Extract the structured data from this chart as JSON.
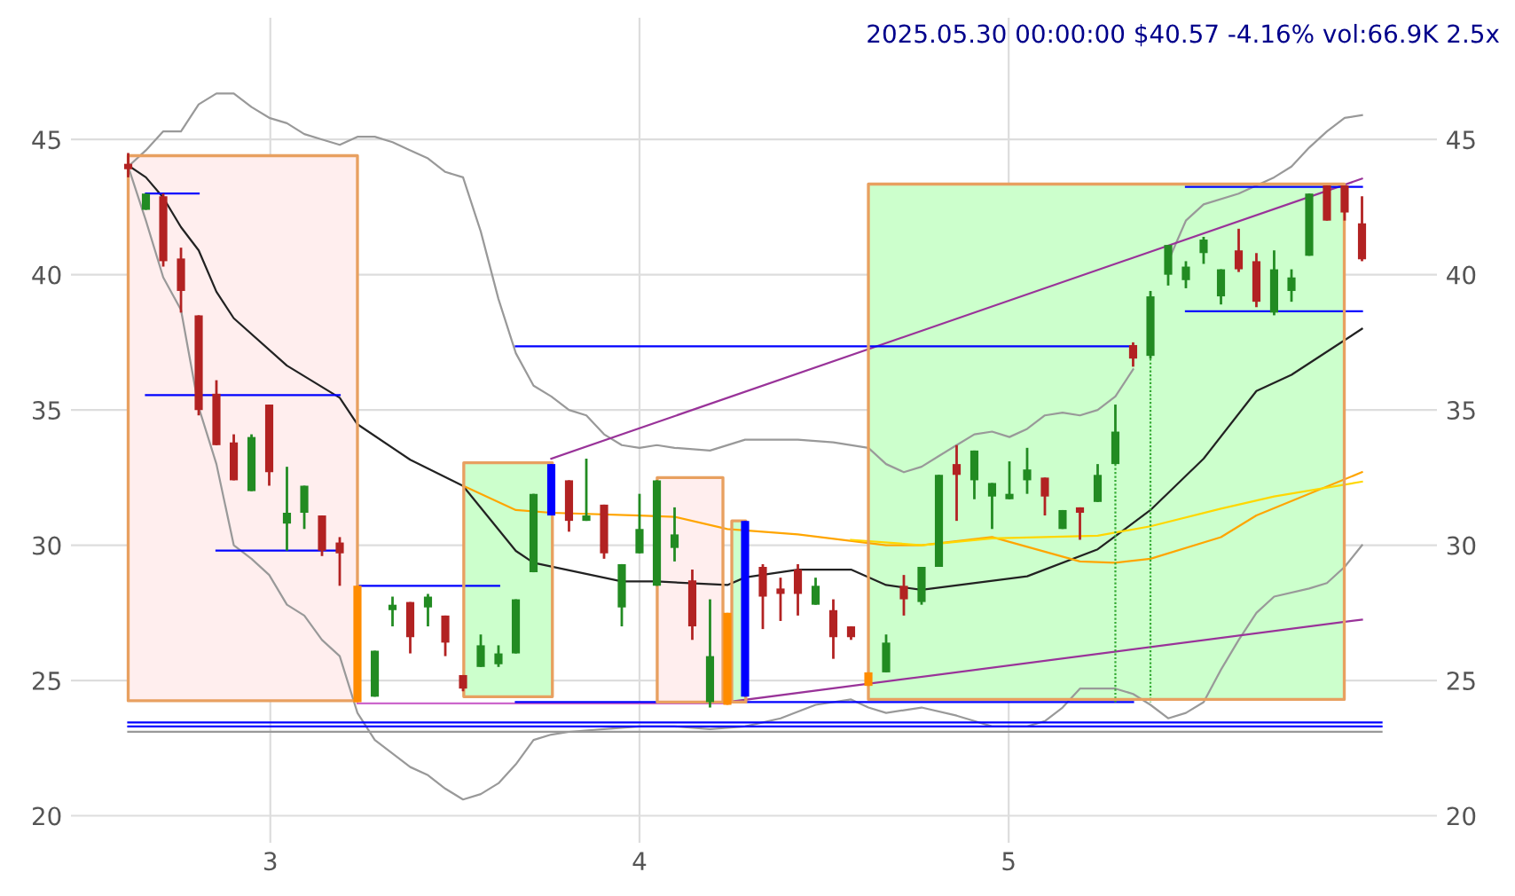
{
  "chart_data": {
    "type": "candlestick",
    "title": "2025.05.30 00:00:00 $40.57 -4.16% vol:66.9K 2.5x",
    "x": [
      2.615,
      2.663,
      2.71,
      2.758,
      2.806,
      2.854,
      2.901,
      2.949,
      2.997,
      3.045,
      3.092,
      3.14,
      3.188,
      3.236,
      3.283,
      3.331,
      3.379,
      3.427,
      3.474,
      3.522,
      3.57,
      3.618,
      3.665,
      3.713,
      3.761,
      3.809,
      3.856,
      3.904,
      3.952,
      4.0,
      4.047,
      4.095,
      4.143,
      4.191,
      4.238,
      4.286,
      4.334,
      4.382,
      4.429,
      4.477,
      4.525,
      4.573,
      4.62,
      4.668,
      4.716,
      4.764,
      4.811,
      4.859,
      4.907,
      4.955,
      5.002,
      5.05,
      5.098,
      5.146,
      5.193,
      5.241,
      5.289,
      5.337,
      5.384,
      5.432,
      5.48,
      5.528,
      5.575,
      5.623,
      5.671,
      5.719,
      5.766,
      5.814,
      5.862,
      5.91,
      5.957
    ],
    "ohlc": [
      [
        44.1,
        44.5,
        43.6,
        43.9
      ],
      [
        42.4,
        43.0,
        42.4,
        43.0
      ],
      [
        42.9,
        43.0,
        40.3,
        40.5
      ],
      [
        40.6,
        41.0,
        38.6,
        39.4
      ],
      [
        38.5,
        38.5,
        34.8,
        35.0
      ],
      [
        35.6,
        36.1,
        33.7,
        33.7
      ],
      [
        33.8,
        34.1,
        32.4,
        32.4
      ],
      [
        32.0,
        34.1,
        32.0,
        34.0
      ],
      [
        35.2,
        35.2,
        32.2,
        32.7
      ],
      [
        30.8,
        32.9,
        29.8,
        31.2
      ],
      [
        31.2,
        32.2,
        30.6,
        32.2
      ],
      [
        31.1,
        31.1,
        29.6,
        29.8
      ],
      [
        30.1,
        30.3,
        28.5,
        29.7
      ],
      [
        28.5,
        28.5,
        24.2,
        24.2
      ],
      [
        24.4,
        26.1,
        24.4,
        26.1
      ],
      [
        27.6,
        28.1,
        27.0,
        27.8
      ],
      [
        27.9,
        27.9,
        26.0,
        26.6
      ],
      [
        27.7,
        28.2,
        27.0,
        28.1
      ],
      [
        27.4,
        27.4,
        25.9,
        26.4
      ],
      [
        25.2,
        25.2,
        24.6,
        24.7
      ],
      [
        25.5,
        26.7,
        25.5,
        26.3
      ],
      [
        25.6,
        26.3,
        25.5,
        26.0
      ],
      [
        26.0,
        28.0,
        26.0,
        28.0
      ],
      [
        29.0,
        31.9,
        29.0,
        31.9
      ],
      [
        31.1,
        33.0,
        31.1,
        33.0
      ],
      [
        32.4,
        32.4,
        30.5,
        30.9
      ],
      [
        30.9,
        33.2,
        30.9,
        31.1
      ],
      [
        31.5,
        31.5,
        29.5,
        29.7
      ],
      [
        27.7,
        29.3,
        27.0,
        29.3
      ],
      [
        29.7,
        31.9,
        29.7,
        30.6
      ],
      [
        28.5,
        32.4,
        28.5,
        32.4
      ],
      [
        29.9,
        31.4,
        29.4,
        30.4
      ],
      [
        28.7,
        29.1,
        26.5,
        27.0
      ],
      [
        24.2,
        28.0,
        24.0,
        25.9
      ],
      [
        27.5,
        27.5,
        24.1,
        24.1
      ],
      [
        24.4,
        30.9,
        24.4,
        30.9
      ],
      [
        29.2,
        29.3,
        26.9,
        28.1
      ],
      [
        28.4,
        28.8,
        27.2,
        28.2
      ],
      [
        29.1,
        29.3,
        27.4,
        28.2
      ],
      [
        27.8,
        28.8,
        27.8,
        28.5
      ],
      [
        27.6,
        28.0,
        25.8,
        26.6
      ],
      [
        27.0,
        27.0,
        26.5,
        26.6
      ],
      [
        25.3,
        25.3,
        24.8,
        24.8
      ],
      [
        25.3,
        26.7,
        25.3,
        26.4
      ],
      [
        28.5,
        28.9,
        27.4,
        28.0
      ],
      [
        27.9,
        29.2,
        27.8,
        29.2
      ],
      [
        29.2,
        32.6,
        29.2,
        32.6
      ],
      [
        33.0,
        33.7,
        30.9,
        32.6
      ],
      [
        32.4,
        33.5,
        31.7,
        33.5
      ],
      [
        31.8,
        32.3,
        30.6,
        32.3
      ],
      [
        31.7,
        33.1,
        31.7,
        31.9
      ],
      [
        32.4,
        33.6,
        31.9,
        32.8
      ],
      [
        32.5,
        32.5,
        31.1,
        31.8
      ],
      [
        30.6,
        31.3,
        30.6,
        31.3
      ],
      [
        31.4,
        31.4,
        30.2,
        31.2
      ],
      [
        31.6,
        33.0,
        31.6,
        32.6
      ],
      [
        33.0,
        35.2,
        33.0,
        34.2
      ],
      [
        37.4,
        37.5,
        36.6,
        36.9
      ],
      [
        37.0,
        39.4,
        36.9,
        39.2
      ],
      [
        40.0,
        41.1,
        39.6,
        41.1
      ],
      [
        39.8,
        40.5,
        39.5,
        40.3
      ],
      [
        40.8,
        41.4,
        40.4,
        41.3
      ],
      [
        39.2,
        40.2,
        38.9,
        40.2
      ],
      [
        40.9,
        41.7,
        40.1,
        40.2
      ],
      [
        40.5,
        40.8,
        38.8,
        39.0
      ],
      [
        38.6,
        40.9,
        38.5,
        40.2
      ],
      [
        39.4,
        40.2,
        39.0,
        39.9
      ],
      [
        40.7,
        43.0,
        40.7,
        43.0
      ],
      [
        43.3,
        43.3,
        42.0,
        42.0
      ],
      [
        43.3,
        43.3,
        42.0,
        42.3
      ],
      [
        41.9,
        42.9,
        40.5,
        40.57
      ]
    ],
    "colors": [
      "#b22222",
      "#228b22",
      "#b22222",
      "#b22222",
      "#b22222",
      "#b22222",
      "#b22222",
      "#228b22",
      "#b22222",
      "#228b22",
      "#228b22",
      "#b22222",
      "#b22222",
      "#ff8c00",
      "#228b22",
      "#228b22",
      "#b22222",
      "#228b22",
      "#b22222",
      "#b22222",
      "#228b22",
      "#228b22",
      "#228b22",
      "#228b22",
      "#0000ff",
      "#b22222",
      "#228b22",
      "#b22222",
      "#228b22",
      "#228b22",
      "#228b22",
      "#228b22",
      "#b22222",
      "#228b22",
      "#ff8c00",
      "#0000ff",
      "#b22222",
      "#b22222",
      "#b22222",
      "#228b22",
      "#b22222",
      "#b22222",
      "#ff8c00",
      "#228b22",
      "#b22222",
      "#228b22",
      "#228b22",
      "#b22222",
      "#228b22",
      "#228b22",
      "#228b22",
      "#228b22",
      "#b22222",
      "#228b22",
      "#b22222",
      "#228b22",
      "#228b22",
      "#b22222",
      "#228b22",
      "#228b22",
      "#228b22",
      "#228b22",
      "#228b22",
      "#b22222",
      "#b22222",
      "#228b22",
      "#228b22",
      "#228b22",
      "#b22222",
      "#b22222",
      "#b22222"
    ],
    "series": [
      {
        "type": "area",
        "color": "#ffeeee",
        "x": [
          2.615,
          2.615,
          3.236,
          3.236,
          2.615
        ],
        "values": [
          24.25,
          44.4,
          44.4,
          24.25,
          24.25
        ]
      },
      {
        "type": "area",
        "color": "#ccffcc",
        "x": [
          3.524,
          3.524,
          3.764,
          3.764,
          3.524
        ],
        "values": [
          24.4,
          33.05,
          33.05,
          24.4,
          24.4
        ]
      },
      {
        "type": "area",
        "color": "#ffeeee",
        "x": [
          4.048,
          4.048,
          4.226,
          4.226,
          4.048
        ],
        "values": [
          24.2,
          32.5,
          32.5,
          24.2,
          24.2
        ]
      },
      {
        "type": "area",
        "color": "#ccffcc",
        "x": [
          4.25,
          4.25,
          4.288,
          4.288,
          4.25
        ],
        "values": [
          24.2,
          30.9,
          30.9,
          24.2,
          24.2
        ]
      },
      {
        "type": "area",
        "color": "#ccffcc",
        "x": [
          4.62,
          4.62,
          5.909,
          5.909,
          4.62
        ],
        "values": [
          24.3,
          43.35,
          43.35,
          24.3,
          24.3
        ]
      },
      {
        "type": "line",
        "color": "#999999",
        "x": [
          2.615,
          2.663,
          2.71,
          2.758,
          2.806,
          2.854,
          2.901,
          2.949,
          2.997,
          3.045,
          3.092,
          3.14,
          3.188,
          3.236,
          3.283,
          3.331,
          3.379,
          3.427,
          3.474,
          3.522,
          3.57,
          3.618,
          3.665,
          3.713,
          3.761,
          3.809,
          3.856,
          3.904,
          3.952,
          4.0,
          4.047,
          4.095,
          4.191,
          4.286,
          4.429,
          4.525,
          4.62,
          4.668,
          4.716,
          4.764,
          4.811,
          4.859,
          4.907,
          4.955,
          5.002,
          5.05,
          5.098,
          5.146,
          5.193,
          5.241,
          5.289,
          5.337,
          5.384,
          5.432,
          5.48,
          5.528,
          5.623,
          5.719,
          5.766,
          5.814,
          5.862,
          5.91,
          5.957
        ],
        "values": [
          44.0,
          44.6,
          45.3,
          45.3,
          46.3,
          46.7,
          46.7,
          46.2,
          45.8,
          45.6,
          45.2,
          45.0,
          44.8,
          45.1,
          45.1,
          44.9,
          44.6,
          44.3,
          43.8,
          43.6,
          41.6,
          39.1,
          37.1,
          35.9,
          35.5,
          35.0,
          34.8,
          34.1,
          33.7,
          33.6,
          33.7,
          33.6,
          33.5,
          33.9,
          33.9,
          33.8,
          33.6,
          33.0,
          32.7,
          32.9,
          33.3,
          33.7,
          34.1,
          34.2,
          34.0,
          34.3,
          34.8,
          34.9,
          34.8,
          35.0,
          35.5,
          36.5,
          null,
          40.5,
          42.0,
          42.6,
          43.0,
          43.6,
          44.0,
          44.7,
          45.3,
          45.8,
          45.9
        ]
      },
      {
        "type": "line",
        "color": "#999999",
        "x": [
          2.615,
          2.663,
          2.71,
          2.758,
          2.806,
          2.854,
          2.901,
          2.949,
          2.997,
          3.045,
          3.092,
          3.14,
          3.188,
          3.236,
          3.283,
          3.331,
          3.379,
          3.427,
          3.474,
          3.522,
          3.57,
          3.618,
          3.665,
          3.713,
          3.761,
          3.809,
          3.904,
          4.0,
          4.095,
          4.191,
          4.286,
          4.382,
          4.477,
          4.573,
          4.62,
          4.668,
          4.716,
          4.764,
          4.859,
          4.907,
          4.955,
          5.05,
          5.098,
          5.146,
          5.193,
          5.289,
          5.337,
          5.384,
          5.432,
          5.48,
          5.528,
          5.575,
          5.623,
          5.671,
          5.719,
          5.814,
          5.862,
          5.91,
          5.957
        ],
        "values": [
          44.0,
          42.0,
          39.9,
          38.7,
          35.1,
          33.0,
          30.0,
          29.5,
          28.9,
          27.8,
          27.4,
          26.5,
          25.9,
          23.8,
          22.8,
          22.3,
          21.8,
          21.5,
          21.0,
          20.6,
          20.8,
          21.2,
          21.9,
          22.8,
          23.0,
          23.1,
          23.2,
          23.3,
          23.3,
          23.2,
          23.3,
          23.6,
          24.1,
          24.3,
          24.0,
          23.8,
          23.9,
          24.0,
          23.7,
          23.5,
          23.3,
          23.3,
          23.5,
          24.0,
          24.7,
          24.7,
          24.5,
          24.1,
          23.6,
          23.8,
          24.2,
          25.4,
          26.5,
          27.5,
          28.1,
          28.4,
          28.6,
          29.2,
          30.0
        ]
      },
      {
        "type": "line",
        "color": "#222222",
        "x": [
          2.615,
          2.663,
          2.71,
          2.758,
          2.806,
          2.854,
          2.901,
          3.045,
          3.188,
          3.236,
          3.379,
          3.522,
          3.665,
          3.713,
          3.952,
          4.047,
          4.238,
          4.286,
          4.429,
          4.573,
          4.668,
          4.764,
          5.05,
          5.241,
          5.384,
          5.528,
          5.671,
          5.766,
          5.957
        ],
        "values": [
          44.04,
          43.6,
          42.85,
          41.76,
          40.9,
          39.37,
          38.39,
          36.64,
          35.45,
          34.47,
          33.16,
          32.19,
          29.79,
          29.35,
          28.66,
          28.66,
          28.53,
          28.81,
          29.1,
          29.1,
          28.53,
          28.35,
          28.85,
          29.85,
          31.3,
          33.2,
          35.7,
          36.3,
          38.0
        ]
      },
      {
        "type": "line",
        "color": "#ffa500",
        "x": [
          3.522,
          3.665,
          3.761,
          4.0,
          4.095,
          4.238,
          4.429,
          4.668,
          4.764,
          4.955,
          5.193,
          5.289,
          5.384,
          5.575,
          5.671,
          5.957
        ],
        "values": [
          32.2,
          31.3,
          31.2,
          31.1,
          31.05,
          30.6,
          30.4,
          30.0,
          30.0,
          30.3,
          29.4,
          29.35,
          29.5,
          30.3,
          31.1,
          32.7
        ]
      },
      {
        "type": "line",
        "color": "#ffd700",
        "x": [
          4.573,
          4.764,
          4.955,
          5.241,
          5.384,
          5.575,
          5.719,
          5.957
        ],
        "values": [
          30.2,
          30.0,
          30.25,
          30.35,
          30.7,
          31.35,
          31.8,
          32.35
        ]
      },
      {
        "type": "line",
        "color": "#993399",
        "x": [
          3.761,
          5.957
        ],
        "values": [
          33.2,
          43.55
        ]
      },
      {
        "type": "line",
        "color": "#993399",
        "x": [
          4.238,
          5.957
        ],
        "values": [
          24.2,
          27.25
        ]
      },
      {
        "type": "line",
        "color": "#cc66cc",
        "x": [
          3.236,
          4.238
        ],
        "values": [
          24.15,
          24.15
        ]
      },
      {
        "type": "line",
        "color": "#0000ff",
        "x": [
          2.663,
          2.806
        ],
        "values": [
          43.0,
          43.0
        ]
      },
      {
        "type": "line",
        "color": "#0000ff",
        "x": [
          2.663,
          3.188
        ],
        "values": [
          35.55,
          35.55
        ]
      },
      {
        "type": "line",
        "color": "#0000ff",
        "x": [
          2.854,
          3.188
        ],
        "values": [
          29.8,
          29.8
        ]
      },
      {
        "type": "line",
        "color": "#0000ff",
        "x": [
          3.236,
          3.62
        ],
        "values": [
          28.5,
          28.5
        ]
      },
      {
        "type": "line",
        "color": "#0000ff",
        "x": [
          3.665,
          5.337
        ],
        "values": [
          37.35,
          37.35
        ]
      },
      {
        "type": "line",
        "color": "#0000ff",
        "x": [
          3.665,
          5.337
        ],
        "values": [
          24.2,
          24.2
        ]
      },
      {
        "type": "line",
        "color": "#0000ff",
        "x": [
          5.48,
          5.957
        ],
        "values": [
          43.25,
          43.25
        ]
      },
      {
        "type": "line",
        "color": "#0000ff",
        "x": [
          5.48,
          5.957
        ],
        "values": [
          38.65,
          38.65
        ]
      },
      {
        "type": "line",
        "color": "#0000ff",
        "x": [
          2.615,
          6.01
        ],
        "values": [
          23.45,
          23.45
        ]
      },
      {
        "type": "line",
        "color": "#0000ff",
        "x": [
          2.615,
          6.01
        ],
        "values": [
          23.3,
          23.3
        ]
      },
      {
        "type": "line",
        "color": "#999999",
        "x": [
          2.615,
          6.01
        ],
        "values": [
          23.1,
          23.1
        ]
      },
      {
        "type": "line",
        "color": "#33aa33",
        "line_style": "dotted",
        "x": [
          5.289,
          5.289
        ],
        "values": [
          33.0,
          24.2
        ]
      },
      {
        "type": "line",
        "color": "#33aa33",
        "line_style": "dotted",
        "x": [
          5.384,
          5.384
        ],
        "values": [
          36.9,
          24.2
        ]
      }
    ],
    "xlim": [
      2.46,
      6.16
    ],
    "xticks": [
      3,
      4,
      5
    ],
    "ylim": [
      19.0,
      49.5
    ],
    "yticks": [
      20,
      25,
      30,
      35,
      40,
      45
    ],
    "y2lim": [
      19.0,
      49.5
    ],
    "y2ticks": [
      20,
      25,
      30,
      35,
      40,
      45
    ],
    "grid": true
  }
}
